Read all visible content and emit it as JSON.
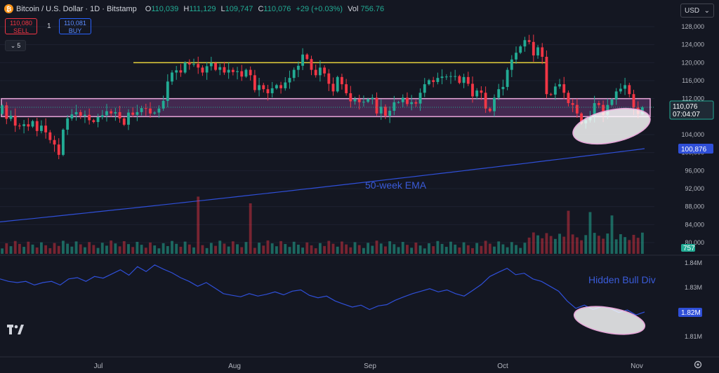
{
  "header": {
    "symbol": "Bitcoin / U.S. Dollar · 1D · Bitstamp",
    "coin_glyph": "₿",
    "ohlc": [
      {
        "k": "O",
        "v": "110,039"
      },
      {
        "k": "H",
        "v": "111,129"
      },
      {
        "k": "L",
        "v": "109,747"
      },
      {
        "k": "C",
        "v": "110,076"
      }
    ],
    "change": "+29 (+0.03%)",
    "vol_label": "Vol",
    "vol_value": "756.76"
  },
  "trade": {
    "sell_price": "110,080",
    "sell_label": "SELL",
    "spread": "1",
    "buy_price": "110,081",
    "buy_label": "BUY"
  },
  "indicators_toggle": {
    "count": "5"
  },
  "currency": {
    "value": "USD"
  },
  "colors": {
    "up": "#22ab94",
    "down": "#f23645",
    "ema": "#2f4fd8",
    "resistance": "#e7d23c",
    "zone": "#e7a6d8",
    "annot": "#3a5bd9"
  },
  "chart_data": {
    "type": "candlestick",
    "x_labels": [
      "Jul",
      "Aug",
      "Sep",
      "Oct",
      "Nov"
    ],
    "price_axis": {
      "ticks": [
        "128,000",
        "124,000",
        "120,000",
        "116,000",
        "112,000",
        "108,000",
        "104,000",
        "100,000",
        "96,000",
        "92,000",
        "88,000",
        "84,000",
        "80,000"
      ],
      "ylim": [
        78000,
        130000
      ]
    },
    "price_closes": [
      110500,
      107500,
      108200,
      106000,
      105900,
      106300,
      105800,
      107000,
      104800,
      106000,
      104500,
      102800,
      101800,
      99500,
      105100,
      107600,
      108500,
      109000,
      108200,
      108400,
      107200,
      106800,
      107900,
      108300,
      109200,
      108700,
      109000,
      107600,
      106200,
      108900,
      108400,
      109000,
      109900,
      109800,
      108700,
      108900,
      109800,
      111500,
      115800,
      117800,
      118300,
      117800,
      120000,
      119600,
      119700,
      118900,
      117800,
      119200,
      119900,
      118400,
      119000,
      117800,
      118400,
      117900,
      118100,
      116900,
      118400,
      117200,
      113900,
      115000,
      114100,
      113200,
      114300,
      115000,
      114300,
      115600,
      116600,
      118400,
      119300,
      121800,
      120800,
      118400,
      117200,
      118900,
      117600,
      115300,
      113600,
      116800,
      115200,
      113200,
      111400,
      111900,
      111200,
      111300,
      111900,
      112200,
      108700,
      110200,
      108200,
      109300,
      111200,
      111200,
      112200,
      110800,
      111200,
      110900,
      113300,
      115200,
      116100,
      115700,
      116600,
      116900,
      116900,
      117000,
      117000,
      115500,
      116800,
      115300,
      112500,
      113800,
      113300,
      109800,
      109200,
      112200,
      114100,
      114600,
      118400,
      120700,
      122200,
      123600,
      125000,
      124600,
      121600,
      123400,
      121300,
      113000,
      112900,
      114700,
      115200,
      113300,
      111000,
      110600,
      108700,
      106500,
      107200,
      108100,
      111000,
      110600,
      108400,
      110600,
      111800,
      113600,
      114200,
      115000,
      113000,
      110000,
      108600,
      110076
    ],
    "ema_50w": {
      "label": "50-week EMA",
      "start": 84600,
      "end": 100876,
      "last_value": "100,876"
    },
    "resistance_level": 120000,
    "support_zone": [
      108000,
      112000
    ],
    "last_price_tag": {
      "price": "110,076",
      "countdown": "07:04:07"
    },
    "volume": {
      "last_value": "757"
    },
    "indicator": {
      "label": "Hidden Bull Div",
      "ticks": [
        "1.84M",
        "1.83M",
        "1.82M",
        "1.81M"
      ],
      "ylim": [
        1.807,
        1.845
      ],
      "last_value": "1.82M"
    }
  }
}
